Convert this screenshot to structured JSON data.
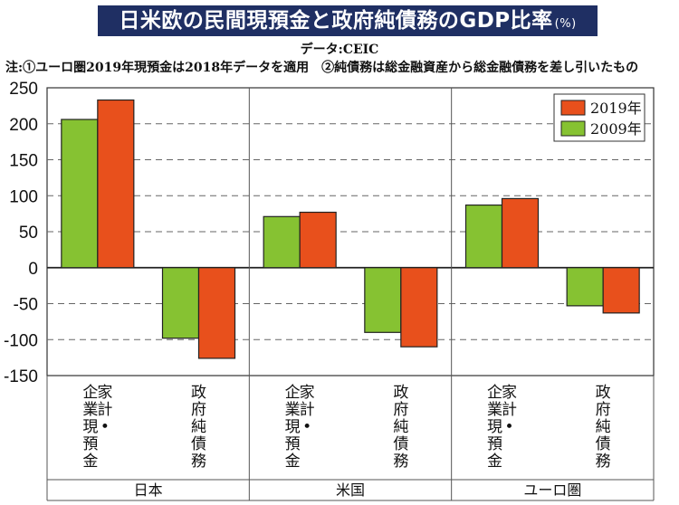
{
  "header": {
    "title": "日米欧の民間現預金と政府純債務のGDP比率",
    "title_suffix": "(%)",
    "source": "データ:CEIC",
    "note": "注:①ユーロ圏2019年現預金は2018年データを適用　②純債務は総金融資産から総金融債務を差し引いたもの"
  },
  "colors": {
    "y2019": "#e8501c",
    "y2009": "#86c232",
    "title_bg": "#1f2f63"
  },
  "chart_data": {
    "type": "bar",
    "title": "日米欧の民間現預金と政府純債務のGDP比率(%)",
    "ylim": [
      -150,
      250
    ],
    "yticks": [
      "250",
      "200",
      "150",
      "100",
      "50",
      "0",
      "-50",
      "-100",
      "-150"
    ],
    "ytick_values": [
      250,
      200,
      150,
      100,
      50,
      0,
      -50,
      -100,
      -150
    ],
    "groups": [
      "日本",
      "米国",
      "ユーロ圏"
    ],
    "categories": [
      {
        "group": "日本",
        "col1": "家計・",
        "col2": "企業現預金"
      },
      {
        "group": "日本",
        "col1": "",
        "col2": "政府純債務"
      },
      {
        "group": "米国",
        "col1": "家計・",
        "col2": "企業現預金"
      },
      {
        "group": "米国",
        "col1": "",
        "col2": "政府純債務"
      },
      {
        "group": "ユーロ圏",
        "col1": "家計・",
        "col2": "企業現預金"
      },
      {
        "group": "ユーロ圏",
        "col1": "",
        "col2": "政府純債務"
      }
    ],
    "series": [
      {
        "name": "2009年",
        "color": "#86c232",
        "values": [
          206,
          -98,
          71,
          -90,
          87,
          -53
        ]
      },
      {
        "name": "2019年",
        "color": "#e8501c",
        "values": [
          233,
          -126,
          77,
          -110,
          96,
          -63
        ]
      }
    ],
    "legend": [
      "2019年",
      "2009年"
    ],
    "legend_position": "top-right",
    "grid": true
  }
}
